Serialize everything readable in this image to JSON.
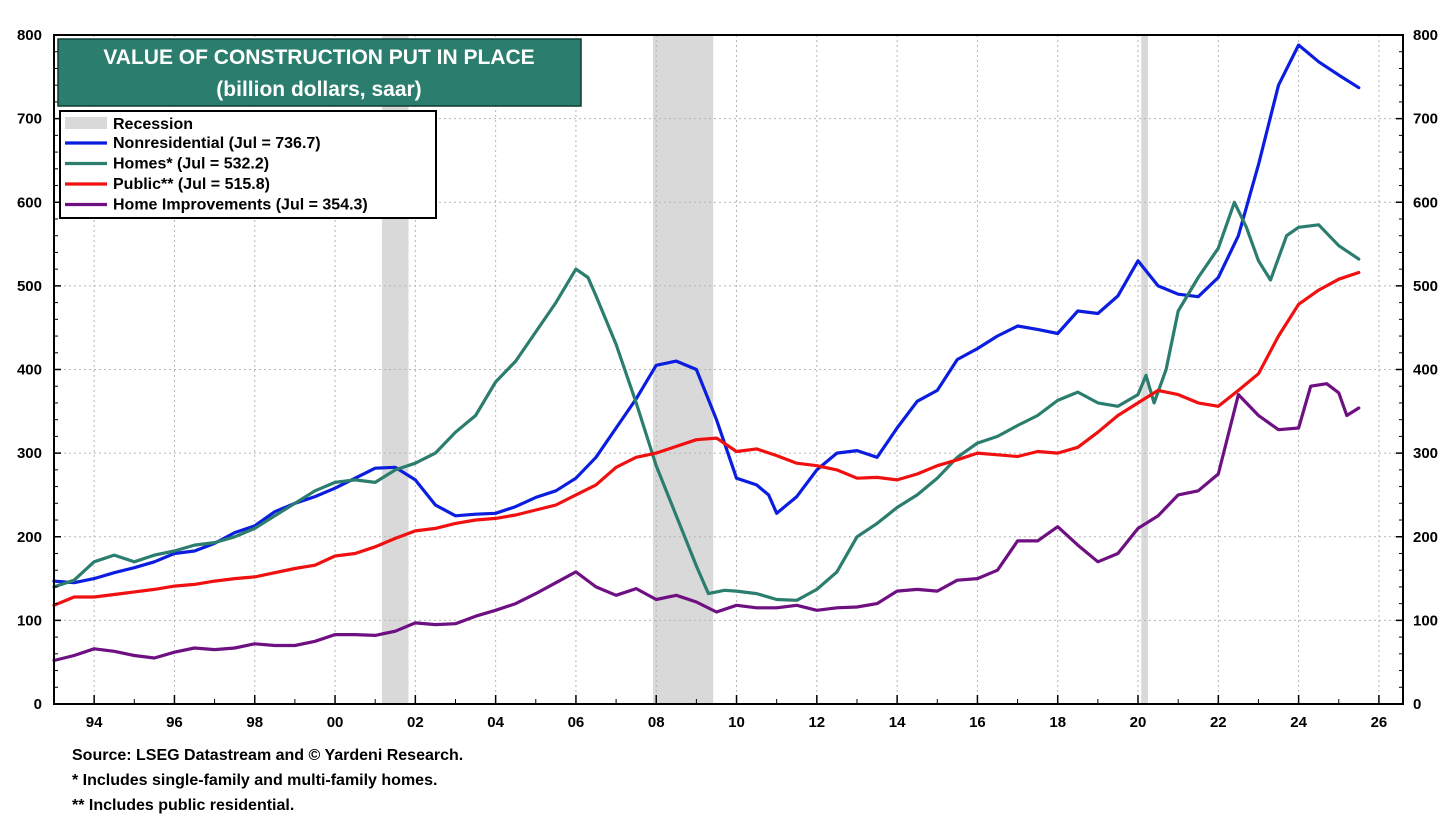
{
  "chart_data": {
    "type": "line",
    "title": "VALUE OF CONSTRUCTION PUT IN PLACE",
    "subtitle": "(billion dollars, saar)",
    "ylim": [
      0,
      800
    ],
    "xlim": [
      1993.0,
      2026.6
    ],
    "y_ticks": [
      "0",
      "100",
      "200",
      "300",
      "400",
      "500",
      "600",
      "700",
      "800"
    ],
    "x_ticks": [
      {
        "year": 1994,
        "label": "94"
      },
      {
        "year": 1996,
        "label": "96"
      },
      {
        "year": 1998,
        "label": "98"
      },
      {
        "year": 2000,
        "label": "00"
      },
      {
        "year": 2002,
        "label": "02"
      },
      {
        "year": 2004,
        "label": "04"
      },
      {
        "year": 2006,
        "label": "06"
      },
      {
        "year": 2008,
        "label": "08"
      },
      {
        "year": 2010,
        "label": "10"
      },
      {
        "year": 2012,
        "label": "12"
      },
      {
        "year": 2014,
        "label": "14"
      },
      {
        "year": 2016,
        "label": "16"
      },
      {
        "year": 2018,
        "label": "18"
      },
      {
        "year": 2020,
        "label": "20"
      },
      {
        "year": 2022,
        "label": "22"
      },
      {
        "year": 2024,
        "label": "24"
      },
      {
        "year": 2026,
        "label": "26"
      }
    ],
    "recessions": [
      {
        "start": 2001.17,
        "end": 2001.83
      },
      {
        "start": 2007.92,
        "end": 2009.42
      },
      {
        "start": 2020.08,
        "end": 2020.25
      }
    ],
    "legend": {
      "recession_label": "Recession",
      "recession_color": "#d9d9d9",
      "position": "top-left"
    },
    "series": [
      {
        "name": "Nonresidential (Jul = 736.7)",
        "color": "#0b1ee0",
        "points": [
          [
            1993.0,
            147
          ],
          [
            1993.5,
            145
          ],
          [
            1994.0,
            150
          ],
          [
            1994.5,
            157
          ],
          [
            1995.0,
            163
          ],
          [
            1995.5,
            170
          ],
          [
            1996.0,
            180
          ],
          [
            1996.5,
            183
          ],
          [
            1997.0,
            192
          ],
          [
            1997.5,
            205
          ],
          [
            1998.0,
            213
          ],
          [
            1998.5,
            230
          ],
          [
            1999.0,
            240
          ],
          [
            1999.5,
            248
          ],
          [
            2000.0,
            258
          ],
          [
            2000.5,
            270
          ],
          [
            2001.0,
            282
          ],
          [
            2001.5,
            283
          ],
          [
            2002.0,
            268
          ],
          [
            2002.5,
            238
          ],
          [
            2003.0,
            225
          ],
          [
            2003.5,
            227
          ],
          [
            2004.0,
            228
          ],
          [
            2004.5,
            236
          ],
          [
            2005.0,
            247
          ],
          [
            2005.5,
            255
          ],
          [
            2006.0,
            270
          ],
          [
            2006.5,
            295
          ],
          [
            2007.0,
            330
          ],
          [
            2007.5,
            365
          ],
          [
            2008.0,
            405
          ],
          [
            2008.5,
            410
          ],
          [
            2009.0,
            400
          ],
          [
            2009.5,
            340
          ],
          [
            2010.0,
            270
          ],
          [
            2010.5,
            262
          ],
          [
            2010.8,
            250
          ],
          [
            2011.0,
            228
          ],
          [
            2011.5,
            248
          ],
          [
            2012.0,
            280
          ],
          [
            2012.5,
            300
          ],
          [
            2013.0,
            303
          ],
          [
            2013.5,
            295
          ],
          [
            2014.0,
            330
          ],
          [
            2014.5,
            362
          ],
          [
            2015.0,
            375
          ],
          [
            2015.5,
            412
          ],
          [
            2016.0,
            425
          ],
          [
            2016.5,
            440
          ],
          [
            2017.0,
            452
          ],
          [
            2017.5,
            448
          ],
          [
            2018.0,
            443
          ],
          [
            2018.5,
            470
          ],
          [
            2019.0,
            467
          ],
          [
            2019.5,
            488
          ],
          [
            2020.0,
            530
          ],
          [
            2020.5,
            500
          ],
          [
            2021.0,
            490
          ],
          [
            2021.5,
            487
          ],
          [
            2022.0,
            510
          ],
          [
            2022.5,
            560
          ],
          [
            2023.0,
            645
          ],
          [
            2023.5,
            740
          ],
          [
            2024.0,
            788
          ],
          [
            2024.5,
            768
          ],
          [
            2025.0,
            752
          ],
          [
            2025.5,
            737
          ]
        ]
      },
      {
        "name": "Homes* (Jul = 532.2)",
        "color": "#2b7d6e",
        "points": [
          [
            1993.0,
            140
          ],
          [
            1993.5,
            148
          ],
          [
            1994.0,
            170
          ],
          [
            1994.5,
            178
          ],
          [
            1995.0,
            170
          ],
          [
            1995.5,
            178
          ],
          [
            1996.0,
            183
          ],
          [
            1996.5,
            190
          ],
          [
            1997.0,
            193
          ],
          [
            1997.5,
            200
          ],
          [
            1998.0,
            210
          ],
          [
            1998.5,
            225
          ],
          [
            1999.0,
            240
          ],
          [
            1999.5,
            255
          ],
          [
            2000.0,
            265
          ],
          [
            2000.5,
            268
          ],
          [
            2001.0,
            265
          ],
          [
            2001.5,
            280
          ],
          [
            2002.0,
            288
          ],
          [
            2002.5,
            300
          ],
          [
            2003.0,
            325
          ],
          [
            2003.5,
            345
          ],
          [
            2004.0,
            385
          ],
          [
            2004.5,
            410
          ],
          [
            2005.0,
            445
          ],
          [
            2005.5,
            480
          ],
          [
            2006.0,
            520
          ],
          [
            2006.3,
            510
          ],
          [
            2006.5,
            488
          ],
          [
            2007.0,
            430
          ],
          [
            2007.5,
            360
          ],
          [
            2008.0,
            285
          ],
          [
            2008.5,
            225
          ],
          [
            2009.0,
            165
          ],
          [
            2009.3,
            132
          ],
          [
            2009.7,
            136
          ],
          [
            2010.0,
            135
          ],
          [
            2010.5,
            132
          ],
          [
            2011.0,
            125
          ],
          [
            2011.5,
            124
          ],
          [
            2012.0,
            137
          ],
          [
            2012.5,
            158
          ],
          [
            2013.0,
            200
          ],
          [
            2013.5,
            216
          ],
          [
            2014.0,
            235
          ],
          [
            2014.5,
            250
          ],
          [
            2015.0,
            270
          ],
          [
            2015.5,
            295
          ],
          [
            2016.0,
            312
          ],
          [
            2016.5,
            320
          ],
          [
            2017.0,
            333
          ],
          [
            2017.5,
            345
          ],
          [
            2018.0,
            363
          ],
          [
            2018.5,
            373
          ],
          [
            2019.0,
            360
          ],
          [
            2019.5,
            356
          ],
          [
            2020.0,
            370
          ],
          [
            2020.2,
            393
          ],
          [
            2020.4,
            360
          ],
          [
            2020.7,
            400
          ],
          [
            2021.0,
            470
          ],
          [
            2021.5,
            510
          ],
          [
            2022.0,
            545
          ],
          [
            2022.4,
            600
          ],
          [
            2022.7,
            570
          ],
          [
            2023.0,
            530
          ],
          [
            2023.3,
            507
          ],
          [
            2023.7,
            560
          ],
          [
            2024.0,
            570
          ],
          [
            2024.5,
            573
          ],
          [
            2025.0,
            548
          ],
          [
            2025.5,
            532
          ]
        ]
      },
      {
        "name": "Public** (Jul = 515.8)",
        "color": "#f01010",
        "points": [
          [
            1993.0,
            118
          ],
          [
            1993.5,
            128
          ],
          [
            1994.0,
            128
          ],
          [
            1994.5,
            131
          ],
          [
            1995.0,
            134
          ],
          [
            1995.5,
            137
          ],
          [
            1996.0,
            141
          ],
          [
            1996.5,
            143
          ],
          [
            1997.0,
            147
          ],
          [
            1997.5,
            150
          ],
          [
            1998.0,
            152
          ],
          [
            1998.5,
            157
          ],
          [
            1999.0,
            162
          ],
          [
            1999.5,
            166
          ],
          [
            2000.0,
            177
          ],
          [
            2000.5,
            180
          ],
          [
            2001.0,
            188
          ],
          [
            2001.5,
            198
          ],
          [
            2002.0,
            207
          ],
          [
            2002.5,
            210
          ],
          [
            2003.0,
            216
          ],
          [
            2003.5,
            220
          ],
          [
            2004.0,
            222
          ],
          [
            2004.5,
            226
          ],
          [
            2005.0,
            232
          ],
          [
            2005.5,
            238
          ],
          [
            2006.0,
            250
          ],
          [
            2006.5,
            262
          ],
          [
            2007.0,
            283
          ],
          [
            2007.5,
            295
          ],
          [
            2008.0,
            300
          ],
          [
            2008.5,
            308
          ],
          [
            2009.0,
            316
          ],
          [
            2009.5,
            318
          ],
          [
            2010.0,
            302
          ],
          [
            2010.5,
            305
          ],
          [
            2011.0,
            297
          ],
          [
            2011.5,
            288
          ],
          [
            2012.0,
            285
          ],
          [
            2012.5,
            280
          ],
          [
            2013.0,
            270
          ],
          [
            2013.5,
            271
          ],
          [
            2014.0,
            268
          ],
          [
            2014.5,
            275
          ],
          [
            2015.0,
            285
          ],
          [
            2015.5,
            292
          ],
          [
            2016.0,
            300
          ],
          [
            2016.5,
            298
          ],
          [
            2017.0,
            296
          ],
          [
            2017.5,
            302
          ],
          [
            2018.0,
            300
          ],
          [
            2018.5,
            307
          ],
          [
            2019.0,
            325
          ],
          [
            2019.5,
            345
          ],
          [
            2020.0,
            360
          ],
          [
            2020.5,
            375
          ],
          [
            2021.0,
            370
          ],
          [
            2021.5,
            360
          ],
          [
            2022.0,
            356
          ],
          [
            2022.5,
            375
          ],
          [
            2023.0,
            395
          ],
          [
            2023.5,
            440
          ],
          [
            2024.0,
            478
          ],
          [
            2024.5,
            495
          ],
          [
            2025.0,
            508
          ],
          [
            2025.5,
            516
          ]
        ]
      },
      {
        "name": "Home Improvements (Jul = 354.3)",
        "color": "#6e0f82",
        "points": [
          [
            1993.0,
            52
          ],
          [
            1993.5,
            58
          ],
          [
            1994.0,
            66
          ],
          [
            1994.5,
            63
          ],
          [
            1995.0,
            58
          ],
          [
            1995.5,
            55
          ],
          [
            1996.0,
            62
          ],
          [
            1996.5,
            67
          ],
          [
            1997.0,
            65
          ],
          [
            1997.5,
            67
          ],
          [
            1998.0,
            72
          ],
          [
            1998.5,
            70
          ],
          [
            1999.0,
            70
          ],
          [
            1999.5,
            75
          ],
          [
            2000.0,
            83
          ],
          [
            2000.5,
            83
          ],
          [
            2001.0,
            82
          ],
          [
            2001.5,
            87
          ],
          [
            2002.0,
            97
          ],
          [
            2002.5,
            95
          ],
          [
            2003.0,
            96
          ],
          [
            2003.5,
            105
          ],
          [
            2004.0,
            112
          ],
          [
            2004.5,
            120
          ],
          [
            2005.0,
            132
          ],
          [
            2005.5,
            145
          ],
          [
            2006.0,
            158
          ],
          [
            2006.5,
            140
          ],
          [
            2007.0,
            130
          ],
          [
            2007.5,
            138
          ],
          [
            2008.0,
            125
          ],
          [
            2008.5,
            130
          ],
          [
            2009.0,
            122
          ],
          [
            2009.5,
            110
          ],
          [
            2010.0,
            118
          ],
          [
            2010.5,
            115
          ],
          [
            2011.0,
            115
          ],
          [
            2011.5,
            118
          ],
          [
            2012.0,
            112
          ],
          [
            2012.5,
            115
          ],
          [
            2013.0,
            116
          ],
          [
            2013.5,
            120
          ],
          [
            2014.0,
            135
          ],
          [
            2014.5,
            137
          ],
          [
            2015.0,
            135
          ],
          [
            2015.5,
            148
          ],
          [
            2016.0,
            150
          ],
          [
            2016.5,
            160
          ],
          [
            2017.0,
            195
          ],
          [
            2017.5,
            195
          ],
          [
            2018.0,
            212
          ],
          [
            2018.5,
            190
          ],
          [
            2019.0,
            170
          ],
          [
            2019.5,
            180
          ],
          [
            2020.0,
            210
          ],
          [
            2020.5,
            225
          ],
          [
            2021.0,
            250
          ],
          [
            2021.5,
            255
          ],
          [
            2022.0,
            275
          ],
          [
            2022.5,
            370
          ],
          [
            2023.0,
            345
          ],
          [
            2023.5,
            328
          ],
          [
            2024.0,
            330
          ],
          [
            2024.3,
            380
          ],
          [
            2024.7,
            383
          ],
          [
            2025.0,
            372
          ],
          [
            2025.2,
            345
          ],
          [
            2025.5,
            354
          ]
        ]
      }
    ],
    "notes": [
      "Source: LSEG Datastream and © Yardeni Research.",
      "* Includes single-family and multi-family homes.",
      "** Includes public residential."
    ]
  }
}
